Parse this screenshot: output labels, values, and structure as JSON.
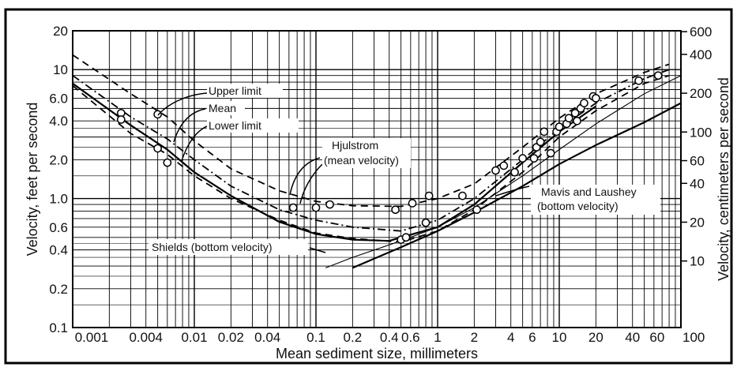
{
  "chart_data": {
    "type": "line",
    "title": "",
    "xlabel": "Mean sediment size, millimeters",
    "ylabel": "Velocity, feet per second",
    "ylabel_right": "Velocity, centimeters per second",
    "x_scale": "log",
    "y_scale": "log",
    "xlim": [
      0.001,
      100
    ],
    "ylim": [
      0.1,
      20
    ],
    "grid": true,
    "x_ticks": [
      {
        "value": 0.001,
        "label": "0.001"
      },
      {
        "value": 0.004,
        "label": "0.004"
      },
      {
        "value": 0.01,
        "label": "0.01"
      },
      {
        "value": 0.02,
        "label": "0.02"
      },
      {
        "value": 0.04,
        "label": "0.04"
      },
      {
        "value": 0.1,
        "label": "0.1"
      },
      {
        "value": 0.2,
        "label": "0.2"
      },
      {
        "value": 0.4,
        "label": "0.4"
      },
      {
        "value": 0.6,
        "label": "0.6"
      },
      {
        "value": 1,
        "label": "1"
      },
      {
        "value": 2,
        "label": "2"
      },
      {
        "value": 4,
        "label": "4"
      },
      {
        "value": 6,
        "label": "6"
      },
      {
        "value": 10,
        "label": "10"
      },
      {
        "value": 20,
        "label": "20"
      },
      {
        "value": 40,
        "label": "40"
      },
      {
        "value": 60,
        "label": "60"
      },
      {
        "value": 100,
        "label": "100"
      }
    ],
    "y_ticks": [
      {
        "value": 0.1,
        "label": "0.1"
      },
      {
        "value": 0.2,
        "label": "0.2"
      },
      {
        "value": 0.4,
        "label": "0.4"
      },
      {
        "value": 0.6,
        "label": "0.6"
      },
      {
        "value": 1,
        "label": "1.0"
      },
      {
        "value": 2,
        "label": "2.0"
      },
      {
        "value": 4,
        "label": "4.0"
      },
      {
        "value": 6,
        "label": "6.0"
      },
      {
        "value": 10,
        "label": "10"
      },
      {
        "value": 20,
        "label": "20"
      }
    ],
    "y_right_ticks": [
      {
        "cm": 10,
        "label": "10"
      },
      {
        "cm": 20,
        "label": "20"
      },
      {
        "cm": 40,
        "label": "40"
      },
      {
        "cm": 60,
        "label": "60"
      },
      {
        "cm": 100,
        "label": "100"
      },
      {
        "cm": 200,
        "label": "200"
      },
      {
        "cm": 400,
        "label": "400"
      },
      {
        "cm": 600,
        "label": "600"
      }
    ],
    "series": [
      {
        "name": "Upper limit",
        "style": "dashed",
        "x": [
          0.001,
          0.003,
          0.006,
          0.01,
          0.02,
          0.05,
          0.1,
          0.2,
          0.5,
          1,
          2,
          5,
          10,
          20,
          50,
          80
        ],
        "y": [
          13,
          6.5,
          4.3,
          2.8,
          1.7,
          1.15,
          0.95,
          0.88,
          0.87,
          1.0,
          1.3,
          2.5,
          4.2,
          6.5,
          9.5,
          11
        ]
      },
      {
        "name": "Mean",
        "style": "dashdot",
        "x": [
          0.001,
          0.003,
          0.006,
          0.01,
          0.02,
          0.05,
          0.1,
          0.2,
          0.5,
          1,
          2,
          5,
          10,
          20,
          50,
          80
        ],
        "y": [
          9,
          4.3,
          2.9,
          2.0,
          1.25,
          0.82,
          0.68,
          0.6,
          0.56,
          0.68,
          1.0,
          2.0,
          3.5,
          5.5,
          8.5,
          10
        ]
      },
      {
        "name": "Lower limit",
        "style": "dashed",
        "x": [
          0.001,
          0.003,
          0.006,
          0.01,
          0.02,
          0.05,
          0.1,
          0.2,
          0.5,
          1,
          2,
          5,
          10,
          20,
          50,
          80
        ],
        "y": [
          7.5,
          3.2,
          2.2,
          1.5,
          1.0,
          0.68,
          0.54,
          0.49,
          0.46,
          0.56,
          0.82,
          1.6,
          3.0,
          4.8,
          7.8,
          9
        ]
      },
      {
        "name": "Shields (bottom velocity)",
        "style": "thin",
        "x": [
          0.12,
          0.2,
          0.5,
          1,
          2,
          5,
          10,
          20,
          50,
          100
        ],
        "y": [
          0.29,
          0.35,
          0.47,
          0.6,
          0.85,
          1.5,
          2.4,
          3.8,
          6.5,
          9
        ]
      },
      {
        "name": "Mavis and Laushey (bottom velocity)",
        "style": "solid",
        "x": [
          0.2,
          0.5,
          1,
          2,
          5,
          10,
          20,
          50,
          100
        ],
        "y": [
          0.29,
          0.42,
          0.56,
          0.78,
          1.25,
          1.85,
          2.6,
          3.9,
          5.5
        ]
      }
    ],
    "hjulstrom_curve": {
      "style": "solid",
      "x": [
        0.001,
        0.003,
        0.006,
        0.01,
        0.02,
        0.05,
        0.1,
        0.2,
        0.4,
        0.5,
        1,
        2,
        5,
        10,
        20
      ],
      "y": [
        7.8,
        3.7,
        2.4,
        1.6,
        1.05,
        0.66,
        0.53,
        0.48,
        0.47,
        0.5,
        0.6,
        0.9,
        1.9,
        3.3,
        5.2
      ]
    },
    "points": [
      {
        "x": 0.0025,
        "y": 4.6
      },
      {
        "x": 0.0025,
        "y": 4.1
      },
      {
        "x": 0.005,
        "y": 4.5
      },
      {
        "x": 0.005,
        "y": 2.45
      },
      {
        "x": 0.006,
        "y": 1.9
      },
      {
        "x": 0.065,
        "y": 0.85
      },
      {
        "x": 0.1,
        "y": 0.85
      },
      {
        "x": 0.13,
        "y": 0.9
      },
      {
        "x": 0.45,
        "y": 0.82
      },
      {
        "x": 0.5,
        "y": 0.48
      },
      {
        "x": 0.55,
        "y": 0.5
      },
      {
        "x": 0.62,
        "y": 0.92
      },
      {
        "x": 0.8,
        "y": 0.65
      },
      {
        "x": 0.85,
        "y": 1.05
      },
      {
        "x": 1.6,
        "y": 1.05
      },
      {
        "x": 2.1,
        "y": 0.82
      },
      {
        "x": 3.0,
        "y": 1.65
      },
      {
        "x": 3.5,
        "y": 1.8
      },
      {
        "x": 4.3,
        "y": 1.6
      },
      {
        "x": 5.0,
        "y": 2.05
      },
      {
        "x": 6.2,
        "y": 2.05
      },
      {
        "x": 6.5,
        "y": 2.5
      },
      {
        "x": 7.0,
        "y": 2.75
      },
      {
        "x": 7.5,
        "y": 3.3
      },
      {
        "x": 8.5,
        "y": 2.25
      },
      {
        "x": 9.5,
        "y": 3.3
      },
      {
        "x": 10,
        "y": 3.6
      },
      {
        "x": 11.5,
        "y": 3.8
      },
      {
        "x": 12,
        "y": 4.2
      },
      {
        "x": 13.5,
        "y": 4.6
      },
      {
        "x": 14,
        "y": 4.0
      },
      {
        "x": 15,
        "y": 5.0
      },
      {
        "x": 16,
        "y": 5.5
      },
      {
        "x": 19,
        "y": 6.2
      },
      {
        "x": 20,
        "y": 6.0
      },
      {
        "x": 45,
        "y": 8.2
      },
      {
        "x": 65,
        "y": 9.0
      }
    ],
    "annotations": [
      {
        "text": "Upper limit"
      },
      {
        "text": "Mean"
      },
      {
        "text": "Lower limit"
      },
      {
        "text": "Hjulstrom"
      },
      {
        "text": "(mean velocity)"
      },
      {
        "text": "Shields (bottom velocity)"
      },
      {
        "text": "Mavis and Laushey"
      },
      {
        "text": "(bottom velocity)"
      }
    ]
  }
}
